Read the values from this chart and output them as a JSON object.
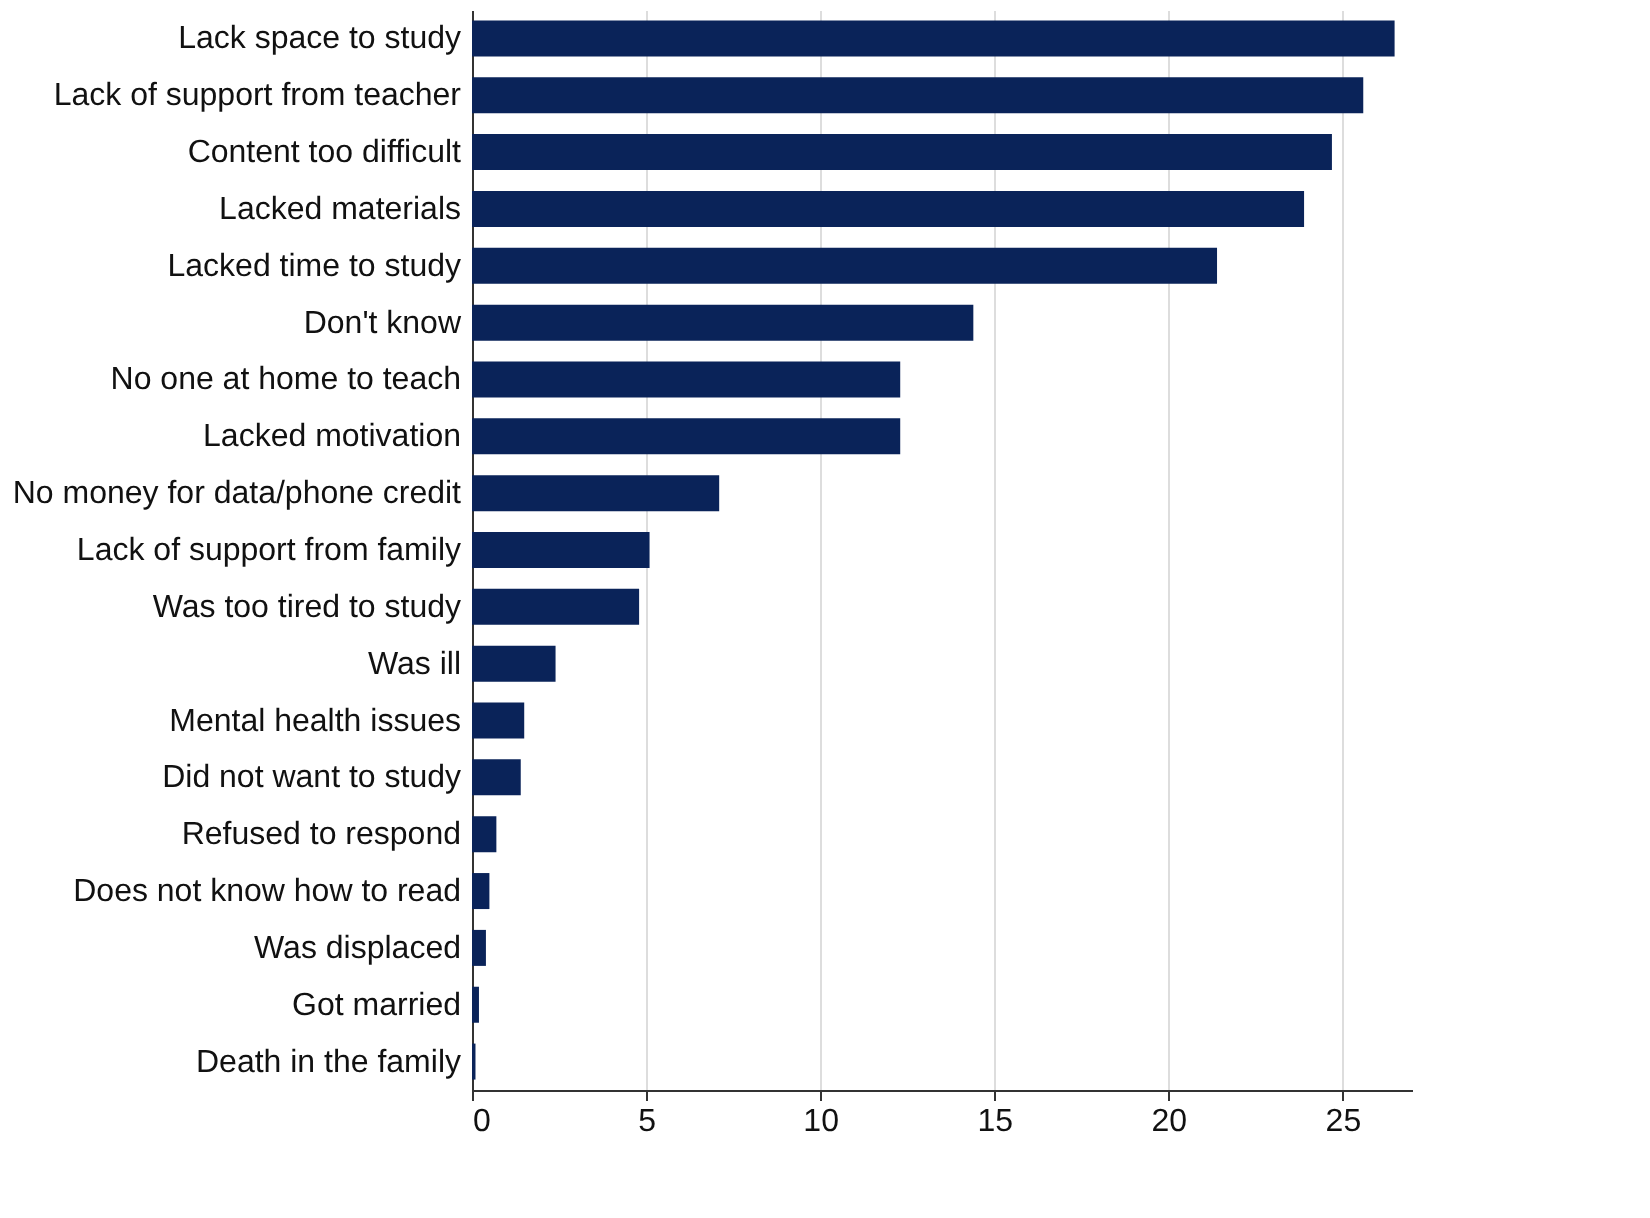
{
  "chart_data": {
    "type": "bar",
    "orientation": "horizontal",
    "categories": [
      "Lack space to study",
      "Lack of support from teacher",
      "Content too difficult",
      "Lacked materials",
      "Lacked time to study",
      "Don't know",
      "No one at home to teach",
      "Lacked motivation",
      "No money for data/phone credit",
      "Lack of support from family",
      "Was too tired to study",
      "Was ill",
      "Mental health issues",
      "Did not want to study",
      "Refused to respond",
      "Does not know how to read",
      "Was displaced",
      "Got married",
      "Death in the family"
    ],
    "values": [
      26.5,
      25.6,
      24.7,
      23.9,
      21.4,
      14.4,
      12.3,
      12.3,
      7.1,
      5.1,
      4.8,
      2.4,
      1.5,
      1.4,
      0.7,
      0.5,
      0.4,
      0.2,
      0.1
    ],
    "color": "#0a2359",
    "xlim": [
      0,
      27
    ],
    "xticks": [
      0,
      5,
      10,
      15,
      20,
      25
    ],
    "grid": "x"
  }
}
